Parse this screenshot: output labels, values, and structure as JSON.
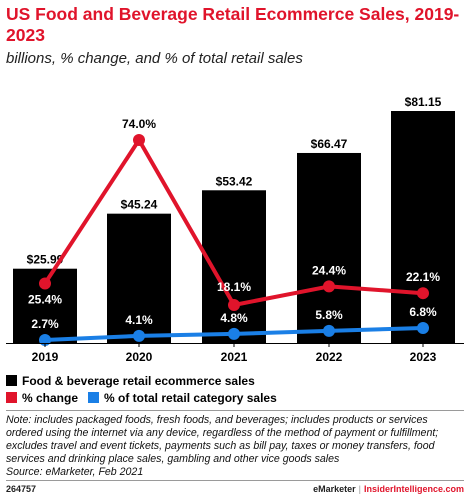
{
  "header": {
    "title": "US Food and Beverage Retail Ecommerce Sales, 2019-2023",
    "subtitle": "billions, % change, and % of total retail sales"
  },
  "legend": {
    "sales": "Food & beverage retail ecommerce sales",
    "change": "% change",
    "share": "% of total retail category sales"
  },
  "colors": {
    "bar": "#000000",
    "change_line": "#e0142b",
    "share_line": "#1a7fe6",
    "brand_red": "#e0142b"
  },
  "chart_data": {
    "type": "bar",
    "categories": [
      "2019",
      "2020",
      "2021",
      "2022",
      "2023"
    ],
    "series": [
      {
        "name": "Food & beverage retail ecommerce sales",
        "type": "bar",
        "values": [
          25.99,
          45.24,
          53.42,
          66.47,
          81.15
        ],
        "labels": [
          "$25.99",
          "$45.24",
          "$53.42",
          "$66.47",
          "$81.15"
        ]
      },
      {
        "name": "% change",
        "type": "line",
        "values": [
          25.4,
          74.0,
          18.1,
          24.4,
          22.1
        ],
        "labels": [
          "25.4%",
          "74.0%",
          "18.1%",
          "24.4%",
          "22.1%"
        ]
      },
      {
        "name": "% of total retail category sales",
        "type": "line",
        "values": [
          2.7,
          4.1,
          4.8,
          5.8,
          6.8
        ],
        "labels": [
          "2.7%",
          "4.1%",
          "4.8%",
          "5.8%",
          "6.8%"
        ]
      }
    ],
    "ylim": [
      0,
      85
    ],
    "grid": false,
    "legend_position": "bottom-left"
  },
  "note": "Note: includes packaged foods, fresh foods, and beverages; includes products or services ordered using the internet via any device, regardless of the method of payment or fulfillment; excludes travel and event tickets, payments such as bill pay, taxes or money transfers, food services and drinking place sales, gambling and other vice goods sales",
  "source": "Source: eMarketer, Feb 2021",
  "footer": {
    "chart_id": "264757",
    "brand_left": "eMarketer",
    "separator": "|",
    "brand_right": "InsiderIntelligence.com"
  }
}
